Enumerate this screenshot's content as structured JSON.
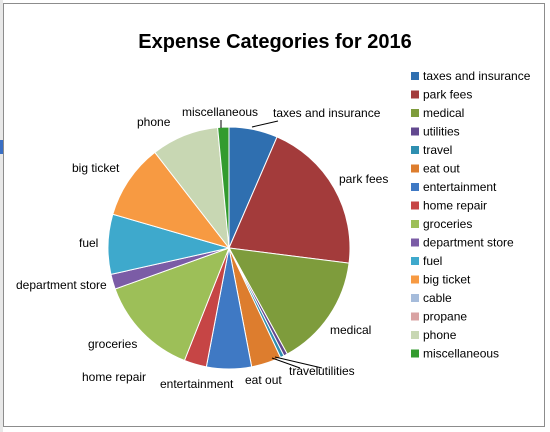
{
  "chart_data": {
    "type": "pie",
    "title": "Expense Categories for 2016",
    "legend_position": "right",
    "categories": [
      "taxes and insurance",
      "park fees",
      "medical",
      "utilities",
      "travel",
      "eat out",
      "entertainment",
      "home repair",
      "groceries",
      "department store",
      "fuel",
      "big ticket",
      "cable",
      "propane",
      "phone",
      "miscellaneous"
    ],
    "values": [
      6.5,
      20.5,
      15.0,
      0.5,
      0.5,
      4.0,
      6.0,
      3.0,
      13.5,
      2.0,
      8.0,
      10.0,
      0.0,
      0.0,
      9.0,
      1.5
    ],
    "colors": [
      "#2f6fb0",
      "#a33b3b",
      "#7e9c3c",
      "#62488f",
      "#2e8fb0",
      "#dd7d2e",
      "#3f79c4",
      "#c64545",
      "#9dbf58",
      "#7b5ca6",
      "#3ea9cc",
      "#f79a42",
      "#a6bcdb",
      "#d9a3a3",
      "#c8d7b3",
      "#339b2f"
    ]
  }
}
